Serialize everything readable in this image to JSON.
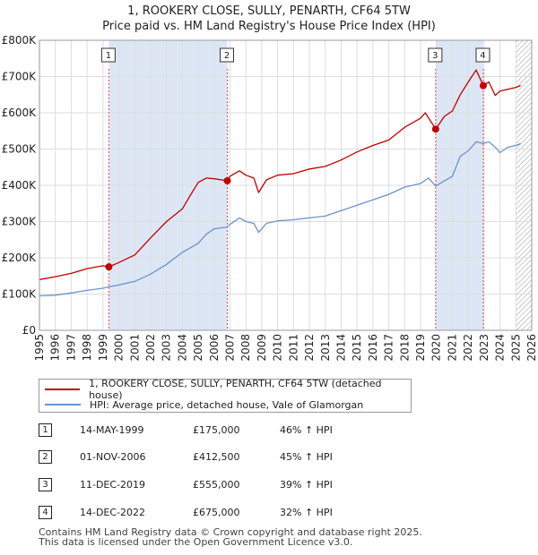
{
  "title": "1, ROOKERY CLOSE, SULLY, PENARTH, CF64 5TW",
  "subtitle": "Price paid vs. HM Land Registry's House Price Index (HPI)",
  "colors": {
    "red": "#c00000",
    "blue": "#6b93cc",
    "shade": "#dde6f5"
  },
  "chart_data": {
    "type": "line",
    "title": "1, ROOKERY CLOSE, SULLY, PENARTH, CF64 5TW",
    "xlabel": "",
    "ylabel": "",
    "xlim": [
      1995,
      2026
    ],
    "ylim": [
      0,
      800000
    ],
    "y_ticks": [
      {
        "value": 0,
        "label": "£0"
      },
      {
        "value": 100000,
        "label": "£100K"
      },
      {
        "value": 200000,
        "label": "£200K"
      },
      {
        "value": 300000,
        "label": "£300K"
      },
      {
        "value": 400000,
        "label": "£400K"
      },
      {
        "value": 500000,
        "label": "£500K"
      },
      {
        "value": 600000,
        "label": "£600K"
      },
      {
        "value": 700000,
        "label": "£700K"
      },
      {
        "value": 800000,
        "label": "£800K"
      }
    ],
    "x_ticks": [
      "1995",
      "1996",
      "1997",
      "1998",
      "1999",
      "2000",
      "2001",
      "2002",
      "2003",
      "2004",
      "2005",
      "2006",
      "2007",
      "2008",
      "2009",
      "2010",
      "2011",
      "2012",
      "2013",
      "2014",
      "2015",
      "2016",
      "2017",
      "2018",
      "2019",
      "2020",
      "2021",
      "2022",
      "2023",
      "2024",
      "2025",
      "2026"
    ],
    "shaded_ranges": [
      [
        1999.37,
        2006.83
      ],
      [
        2019.95,
        2022.95
      ]
    ],
    "hatched_from": 2025.0,
    "series": [
      {
        "name": "1, ROOKERY CLOSE, SULLY, PENARTH, CF64 5TW (detached house)",
        "color": "#c00000",
        "x": [
          1995.0,
          1996.0,
          1997.0,
          1998.0,
          1999.0,
          1999.37,
          2000.0,
          2001.0,
          2002.0,
          2003.0,
          2004.0,
          2004.5,
          2005.0,
          2005.5,
          2006.0,
          2006.83,
          2007.0,
          2007.6,
          2008.0,
          2008.5,
          2008.8,
          2009.3,
          2010.0,
          2011.0,
          2012.0,
          2013.0,
          2014.0,
          2015.0,
          2016.0,
          2017.0,
          2018.0,
          2019.0,
          2019.3,
          2019.95,
          2020.5,
          2021.0,
          2021.5,
          2022.0,
          2022.5,
          2022.95,
          2023.3,
          2023.7,
          2024.0,
          2024.5,
          2025.0,
          2025.3
        ],
        "y": [
          140000,
          148000,
          157000,
          170000,
          178000,
          175000,
          187000,
          208000,
          255000,
          300000,
          335000,
          372000,
          408000,
          420000,
          418000,
          412500,
          425000,
          440000,
          428000,
          420000,
          380000,
          415000,
          428000,
          432000,
          445000,
          452000,
          470000,
          492000,
          510000,
          525000,
          560000,
          585000,
          600000,
          555000,
          590000,
          605000,
          650000,
          685000,
          718000,
          675000,
          685000,
          648000,
          660000,
          665000,
          670000,
          675000
        ]
      },
      {
        "name": "HPI: Average price, detached house, Vale of Glamorgan",
        "color": "#6b93cc",
        "x": [
          1995.0,
          1996.0,
          1997.0,
          1998.0,
          1999.0,
          1999.37,
          2000.0,
          2001.0,
          2002.0,
          2003.0,
          2004.0,
          2005.0,
          2005.5,
          2006.0,
          2006.83,
          2007.0,
          2007.6,
          2008.0,
          2008.5,
          2008.8,
          2009.3,
          2010.0,
          2011.0,
          2012.0,
          2013.0,
          2014.0,
          2015.0,
          2016.0,
          2017.0,
          2018.0,
          2019.0,
          2019.5,
          2019.95,
          2020.5,
          2021.0,
          2021.5,
          2022.0,
          2022.5,
          2022.95,
          2023.3,
          2023.7,
          2024.0,
          2024.5,
          2025.0,
          2025.3
        ],
        "y": [
          95000,
          97000,
          103000,
          110000,
          116000,
          120000,
          125000,
          135000,
          155000,
          182000,
          215000,
          240000,
          265000,
          280000,
          285000,
          292000,
          310000,
          300000,
          295000,
          270000,
          295000,
          302000,
          305000,
          310000,
          315000,
          330000,
          345000,
          360000,
          375000,
          395000,
          405000,
          420000,
          398000,
          412000,
          425000,
          480000,
          495000,
          520000,
          515000,
          520000,
          505000,
          490000,
          505000,
          510000,
          515000
        ]
      }
    ],
    "sales": [
      {
        "label": "1",
        "x": 1999.37,
        "y": 175000
      },
      {
        "label": "2",
        "x": 2006.83,
        "y": 412500
      },
      {
        "label": "3",
        "x": 2019.95,
        "y": 555000
      },
      {
        "label": "4",
        "x": 2022.95,
        "y": 675000
      }
    ]
  },
  "legend": {
    "items": [
      {
        "label": "1, ROOKERY CLOSE, SULLY, PENARTH, CF64 5TW (detached house)",
        "color": "#c00000"
      },
      {
        "label": "HPI: Average price, detached house, Vale of Glamorgan",
        "color": "#6b93cc"
      }
    ]
  },
  "transactions": [
    {
      "num": "1",
      "date": "14-MAY-1999",
      "price": "£175,000",
      "hpi": "46% ↑ HPI"
    },
    {
      "num": "2",
      "date": "01-NOV-2006",
      "price": "£412,500",
      "hpi": "45% ↑ HPI"
    },
    {
      "num": "3",
      "date": "11-DEC-2019",
      "price": "£555,000",
      "hpi": "39% ↑ HPI"
    },
    {
      "num": "4",
      "date": "14-DEC-2022",
      "price": "£675,000",
      "hpi": "32% ↑ HPI"
    }
  ],
  "footer": {
    "line1": "Contains HM Land Registry data © Crown copyright and database right 2025.",
    "line2": "This data is licensed under the Open Government Licence v3.0."
  }
}
